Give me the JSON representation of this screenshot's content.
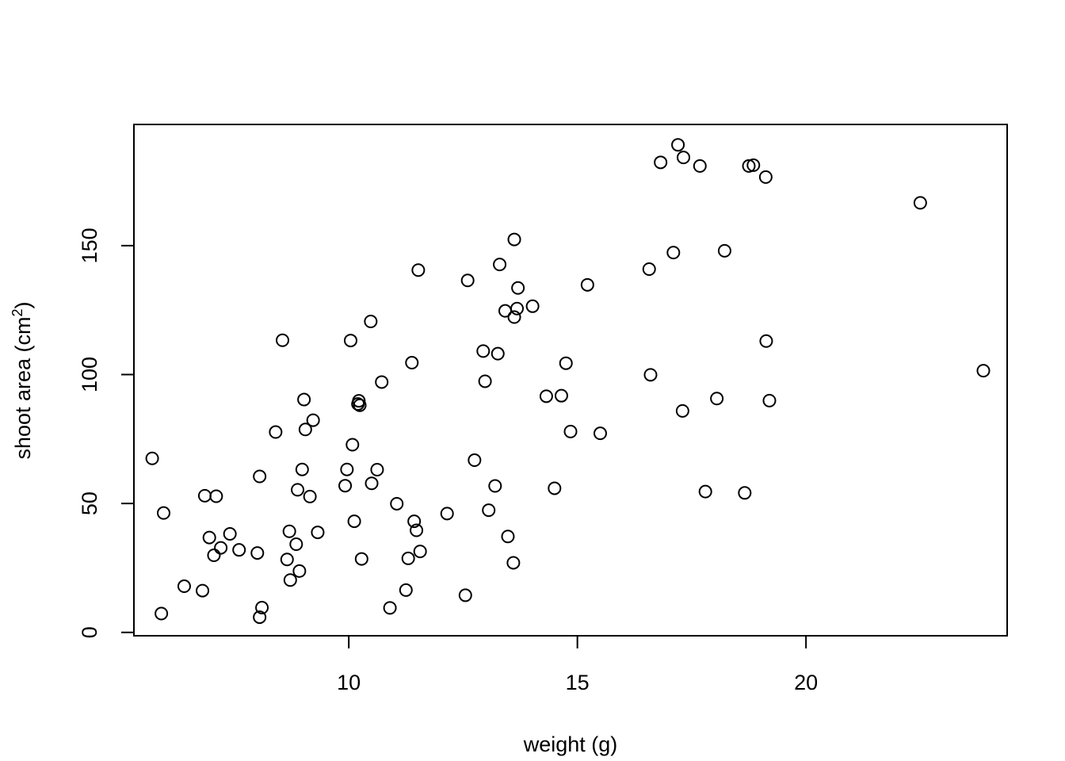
{
  "chart_data": {
    "type": "scatter",
    "title": "",
    "xlabel": "weight (g)",
    "ylabel": {
      "prefix": "shoot area (cm",
      "superscript": "2",
      "suffix": ")"
    },
    "xlim": [
      5.3,
      24.4
    ],
    "ylim": [
      -1.3,
      197
    ],
    "x_ticks": [
      10,
      15,
      20
    ],
    "y_ticks": [
      0,
      50,
      100,
      150
    ],
    "grid": false,
    "legend": "none",
    "marker": "open-circle",
    "color": "#000000",
    "points": [
      [
        5.7,
        67.5
      ],
      [
        5.95,
        46.3
      ],
      [
        5.9,
        7.3
      ],
      [
        6.4,
        17.9
      ],
      [
        6.8,
        16.2
      ],
      [
        6.85,
        53.0
      ],
      [
        6.95,
        36.8
      ],
      [
        7.05,
        29.9
      ],
      [
        7.1,
        52.8
      ],
      [
        7.2,
        32.8
      ],
      [
        7.4,
        38.2
      ],
      [
        7.6,
        32.0
      ],
      [
        8.0,
        30.8
      ],
      [
        8.05,
        60.5
      ],
      [
        8.05,
        5.9
      ],
      [
        8.1,
        9.6
      ],
      [
        8.4,
        77.7
      ],
      [
        8.55,
        113.3
      ],
      [
        8.65,
        28.3
      ],
      [
        8.7,
        39.2
      ],
      [
        8.72,
        20.3
      ],
      [
        8.85,
        34.2
      ],
      [
        8.88,
        55.3
      ],
      [
        8.92,
        23.8
      ],
      [
        8.98,
        63.2
      ],
      [
        9.02,
        90.3
      ],
      [
        9.05,
        78.7
      ],
      [
        9.15,
        52.7
      ],
      [
        9.22,
        82.3
      ],
      [
        9.32,
        38.8
      ],
      [
        9.92,
        56.9
      ],
      [
        9.96,
        63.2
      ],
      [
        10.04,
        113.2
      ],
      [
        10.08,
        72.8
      ],
      [
        10.12,
        43.1
      ],
      [
        10.2,
        88.6
      ],
      [
        10.22,
        89.8
      ],
      [
        10.24,
        88.1
      ],
      [
        10.28,
        28.5
      ],
      [
        10.48,
        120.6
      ],
      [
        10.5,
        57.8
      ],
      [
        10.62,
        63.1
      ],
      [
        10.72,
        97.1
      ],
      [
        10.9,
        9.5
      ],
      [
        11.05,
        49.9
      ],
      [
        11.25,
        16.4
      ],
      [
        11.3,
        28.7
      ],
      [
        11.38,
        104.6
      ],
      [
        11.43,
        43.1
      ],
      [
        11.48,
        39.6
      ],
      [
        11.52,
        140.5
      ],
      [
        11.56,
        31.4
      ],
      [
        12.15,
        46.1
      ],
      [
        12.55,
        14.4
      ],
      [
        12.6,
        136.5
      ],
      [
        12.75,
        66.8
      ],
      [
        12.94,
        109.1
      ],
      [
        12.98,
        97.4
      ],
      [
        13.06,
        47.4
      ],
      [
        13.2,
        56.8
      ],
      [
        13.26,
        108.1
      ],
      [
        13.3,
        142.7
      ],
      [
        13.42,
        124.7
      ],
      [
        13.48,
        37.2
      ],
      [
        13.6,
        27.0
      ],
      [
        13.62,
        152.4
      ],
      [
        13.62,
        122.3
      ],
      [
        13.68,
        125.6
      ],
      [
        13.7,
        133.6
      ],
      [
        14.02,
        126.5
      ],
      [
        14.32,
        91.6
      ],
      [
        14.5,
        55.9
      ],
      [
        14.65,
        91.8
      ],
      [
        14.75,
        104.4
      ],
      [
        14.85,
        77.9
      ],
      [
        15.22,
        134.8
      ],
      [
        15.5,
        77.2
      ],
      [
        16.57,
        140.9
      ],
      [
        16.6,
        99.9
      ],
      [
        16.82,
        182.3
      ],
      [
        17.1,
        147.3
      ],
      [
        17.2,
        189.1
      ],
      [
        17.3,
        85.9
      ],
      [
        17.32,
        184.2
      ],
      [
        17.68,
        180.9
      ],
      [
        17.8,
        54.6
      ],
      [
        18.05,
        90.7
      ],
      [
        18.22,
        148.0
      ],
      [
        18.66,
        54.1
      ],
      [
        18.75,
        180.9
      ],
      [
        18.85,
        181.2
      ],
      [
        19.12,
        176.6
      ],
      [
        19.13,
        113.0
      ],
      [
        19.2,
        89.9
      ],
      [
        22.5,
        166.6
      ],
      [
        23.88,
        101.5
      ]
    ]
  }
}
